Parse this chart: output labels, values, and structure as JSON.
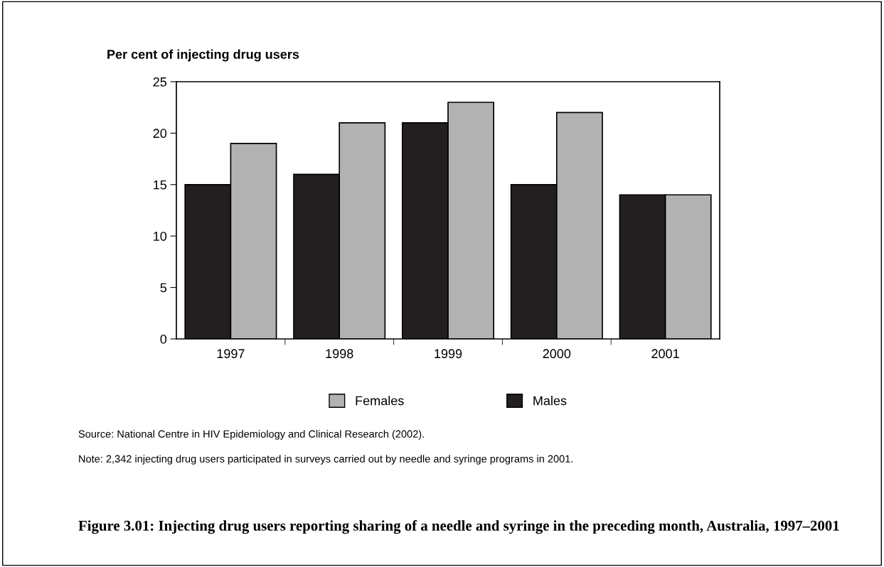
{
  "chart_data": {
    "type": "bar",
    "title": "Figure 3.01: Injecting drug users reporting sharing of a needle and syringe in the preceding month, Australia, 1997–2001",
    "ylabel": "Per cent of injecting drug users",
    "categories": [
      "1997",
      "1998",
      "1999",
      "2000",
      "2001"
    ],
    "series": [
      {
        "name": "Males",
        "color": "#231f20",
        "values": [
          15,
          16,
          21,
          15,
          14
        ]
      },
      {
        "name": "Females",
        "color": "#b2b2b2",
        "values": [
          19,
          21,
          23,
          22,
          14
        ]
      }
    ],
    "ylim": [
      0,
      25
    ],
    "yticks": [
      0,
      5,
      10,
      15,
      20,
      25
    ],
    "grid": false,
    "legend": "bottom",
    "annotations": [
      "Source: National Centre in HIV Epidemiology and Clinical Research (2002).",
      "Note: 2,342 injecting drug users participated in surveys carried out by needle and syringe programs in 2001."
    ]
  }
}
